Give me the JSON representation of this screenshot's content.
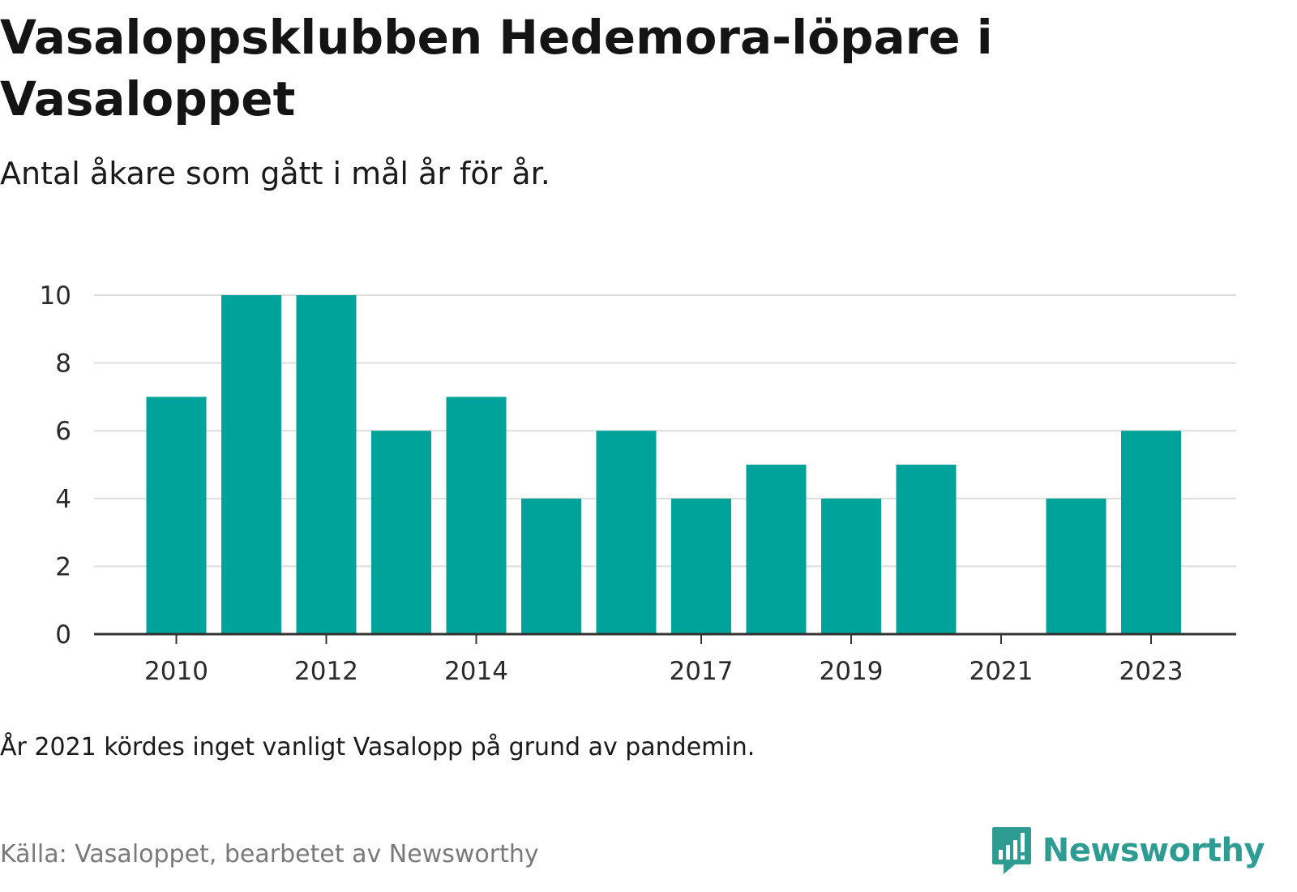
{
  "header": {
    "title": "Vasaloppsklubben Hedemora-löpare i Vasaloppet",
    "subtitle": "Antal åkare som gått i mål år för år."
  },
  "footer": {
    "note": "År 2021 kördes inget vanligt Vasalopp på grund av pandemin.",
    "source": "Källa: Vasaloppet, bearbetet av Newsworthy",
    "brand": "Newsworthy"
  },
  "colors": {
    "bar": "#00a39a",
    "grid": "#dddddd",
    "axis": "#333333",
    "brand": "#2f9c94"
  },
  "chart_data": {
    "type": "bar",
    "title": "Vasaloppsklubben Hedemora-löpare i Vasaloppet",
    "subtitle": "Antal åkare som gått i mål år för år.",
    "categories": [
      "2010",
      "2011",
      "2012",
      "2013",
      "2014",
      "2015",
      "2016",
      "2017",
      "2018",
      "2019",
      "2020",
      "2021",
      "2022",
      "2023"
    ],
    "values": [
      7,
      10,
      10,
      6,
      7,
      4,
      6,
      4,
      5,
      4,
      5,
      0,
      4,
      6
    ],
    "xticks": [
      "2010",
      "2012",
      "2014",
      "2017",
      "2019",
      "2021",
      "2023"
    ],
    "yticks": [
      0,
      2,
      4,
      6,
      8,
      10
    ],
    "ylim": [
      0,
      10
    ],
    "xlabel": "",
    "ylabel": "",
    "grid": true,
    "legend": "none"
  }
}
